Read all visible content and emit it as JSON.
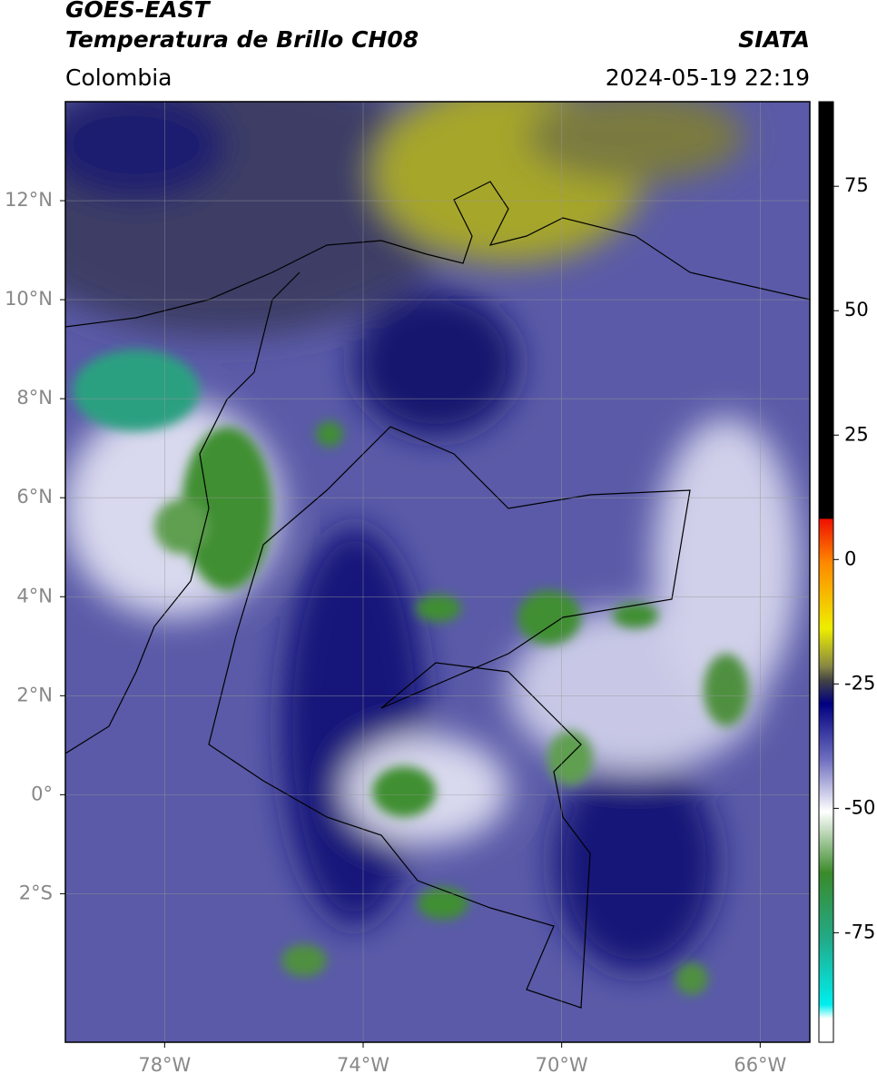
{
  "header": {
    "title": "GOES-EAST",
    "subtitle": "Temperatura de Brillo CH08",
    "source": "SIATA",
    "region": "Colombia",
    "timestamp": "2024-05-19 22:19"
  },
  "map": {
    "lonlim": [
      -80,
      -65
    ],
    "latlim": [
      -5,
      14
    ],
    "grid": true,
    "lonticks": [
      {
        "value": -78,
        "label": "78°W"
      },
      {
        "value": -74,
        "label": "74°W"
      },
      {
        "value": -70,
        "label": "70°W"
      },
      {
        "value": -66,
        "label": "66°W"
      }
    ],
    "latticks": [
      {
        "value": 12,
        "label": "12°N"
      },
      {
        "value": 10,
        "label": "10°N"
      },
      {
        "value": 8,
        "label": "8°N"
      },
      {
        "value": 6,
        "label": "6°N"
      },
      {
        "value": 4,
        "label": "4°N"
      },
      {
        "value": 2,
        "label": "2°N"
      },
      {
        "value": 0,
        "label": "0°"
      },
      {
        "value": -2,
        "label": "2°S"
      }
    ]
  },
  "colorbar": {
    "lim": [
      -97,
      92
    ],
    "ticks": [
      75,
      50,
      25,
      0,
      -25,
      -50,
      -75
    ]
  }
}
